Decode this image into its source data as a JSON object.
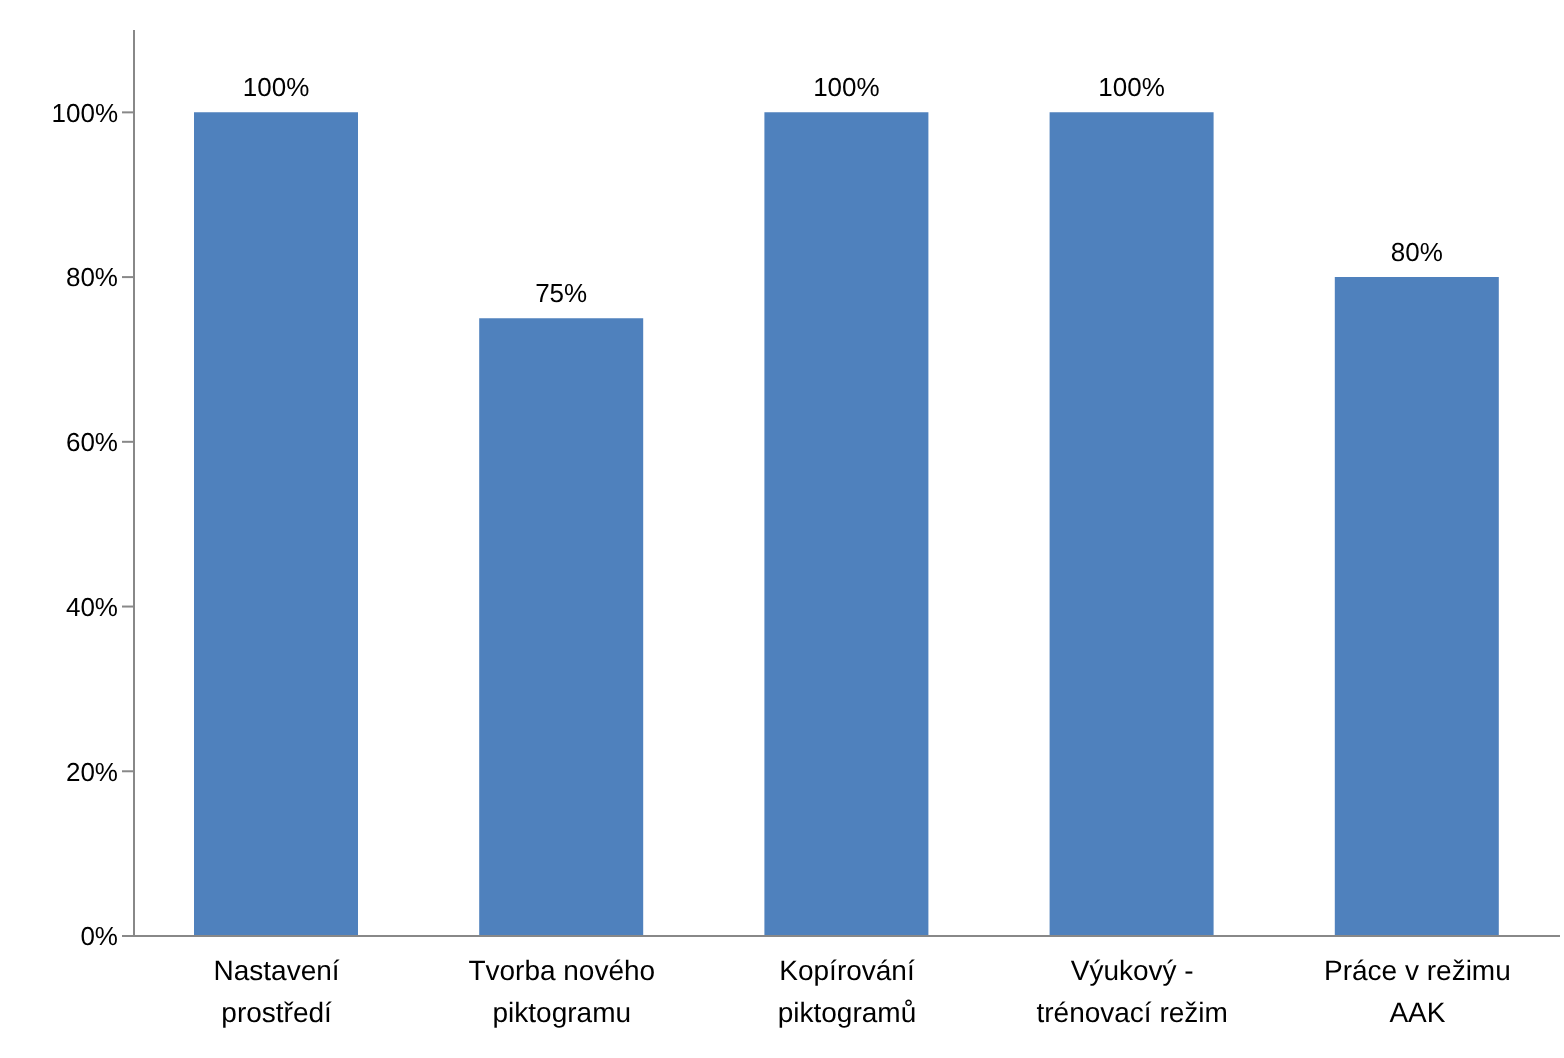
{
  "chart_data": {
    "type": "bar",
    "categories": [
      "Nastavení prostředí",
      "Tvorba nového piktogramu",
      "Kopírování piktogramů",
      "Výukový - trénovací režim",
      "Práce v režimu AAK"
    ],
    "values": [
      100,
      75,
      100,
      100,
      80
    ],
    "value_labels": [
      "100%",
      "75%",
      "100%",
      "100%",
      "80%"
    ],
    "color": "#4f81bd",
    "ylim": [
      0,
      110
    ],
    "yticks": [
      {
        "value": 0,
        "label": "0%"
      },
      {
        "value": 20,
        "label": "20%"
      },
      {
        "value": 40,
        "label": "40%"
      },
      {
        "value": 60,
        "label": "60%"
      },
      {
        "value": 80,
        "label": "80%"
      },
      {
        "value": 100,
        "label": "100%"
      }
    ],
    "grid": false,
    "legend": false
  }
}
